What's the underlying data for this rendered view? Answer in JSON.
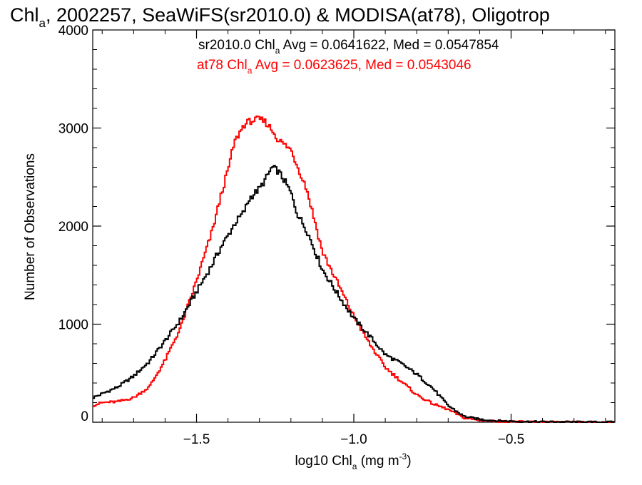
{
  "chart_data": {
    "type": "line",
    "title_main": "Chl",
    "title_sub": "a",
    "title_rest": ", 2002257, SeaWiFS(sr2010.0) & MODISA(at78), Oligotrop",
    "xlabel_main": "log10 Chl",
    "xlabel_sub": "a",
    "xlabel_units": " (mg m",
    "xlabel_sup": "-3",
    "xlabel_close": ")",
    "ylabel": "Number of Observations",
    "xlim": [
      -1.83,
      -0.17
    ],
    "ylim": [
      0,
      4000
    ],
    "x_ticks": [
      -1.5,
      -1.0,
      -0.5
    ],
    "x_tick_labels": [
      "−1.5",
      "−1.0",
      "−0.5"
    ],
    "y_ticks": [
      0,
      1000,
      2000,
      3000,
      4000
    ],
    "y_tick_labels": [
      "0",
      "1000",
      "2000",
      "3000",
      "4000"
    ],
    "grid": false,
    "annotations": [
      {
        "prefix": "sr2010.0 Chl",
        "sub": "a",
        "rest": " Avg = 0.0641622, Med = 0.0547854",
        "color": "#000000"
      },
      {
        "prefix": "at78 Chl",
        "sub": "a",
        "rest": " Avg = 0.0623625, Med = 0.0543046",
        "color": "#ff0000"
      }
    ],
    "series": [
      {
        "color": "#000000",
        "x": [
          -1.83,
          -1.8,
          -1.75,
          -1.7,
          -1.65,
          -1.6,
          -1.55,
          -1.5,
          -1.45,
          -1.42,
          -1.4,
          -1.38,
          -1.35,
          -1.33,
          -1.3,
          -1.28,
          -1.26,
          -1.24,
          -1.22,
          -1.2,
          -1.18,
          -1.15,
          -1.12,
          -1.1,
          -1.05,
          -1.0,
          -0.95,
          -0.9,
          -0.85,
          -0.8,
          -0.75,
          -0.7,
          -0.65,
          -0.6,
          -0.55,
          -0.5,
          -0.45,
          -0.4,
          -0.35,
          -0.3,
          -0.25,
          -0.2,
          -0.17
        ],
        "y": [
          250,
          290,
          360,
          470,
          620,
          830,
          1050,
          1330,
          1610,
          1800,
          1900,
          2020,
          2140,
          2290,
          2380,
          2480,
          2600,
          2560,
          2460,
          2340,
          2130,
          1960,
          1720,
          1560,
          1300,
          1060,
          880,
          690,
          600,
          490,
          350,
          170,
          60,
          30,
          15,
          10,
          6,
          4,
          3,
          2,
          1,
          1,
          1
        ]
      },
      {
        "color": "#ff0000",
        "x": [
          -1.83,
          -1.8,
          -1.75,
          -1.7,
          -1.65,
          -1.6,
          -1.55,
          -1.5,
          -1.45,
          -1.42,
          -1.4,
          -1.38,
          -1.35,
          -1.33,
          -1.3,
          -1.28,
          -1.26,
          -1.24,
          -1.22,
          -1.2,
          -1.18,
          -1.15,
          -1.12,
          -1.1,
          -1.05,
          -1.0,
          -0.95,
          -0.9,
          -0.85,
          -0.8,
          -0.75,
          -0.7,
          -0.65,
          -0.6,
          -0.55,
          -0.5,
          -0.45,
          -0.4,
          -0.35,
          -0.3,
          -0.25,
          -0.2,
          -0.17
        ],
        "y": [
          170,
          200,
          210,
          250,
          360,
          630,
          970,
          1440,
          1950,
          2340,
          2570,
          2850,
          3030,
          3070,
          3090,
          3060,
          2980,
          2880,
          2830,
          2780,
          2620,
          2380,
          2000,
          1740,
          1410,
          1080,
          800,
          560,
          420,
          280,
          190,
          130,
          45,
          20,
          10,
          6,
          4,
          3,
          2,
          1,
          1,
          1,
          1
        ]
      }
    ]
  }
}
